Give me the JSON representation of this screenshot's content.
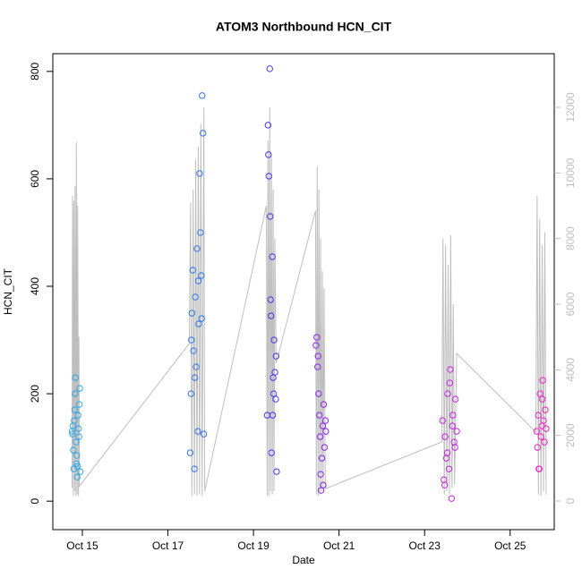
{
  "chart_data": {
    "type": "scatter",
    "title": "ATOM3 Northbound HCN_CIT",
    "xlabel": "Date",
    "ylabel": "HCN_CIT",
    "xlim": [
      14.31,
      26.03
    ],
    "xticks": [
      {
        "value": 15,
        "label": "Oct 15"
      },
      {
        "value": 17,
        "label": "Oct 17"
      },
      {
        "value": 19,
        "label": "Oct 19"
      },
      {
        "value": 21,
        "label": "Oct 21"
      },
      {
        "value": 23,
        "label": "Oct 23"
      },
      {
        "value": 25,
        "label": "Oct 25"
      }
    ],
    "ylim": [
      -53,
      833
    ],
    "yticks": [
      0,
      200,
      400,
      600,
      800
    ],
    "y2lim": [
      -873,
      13636
    ],
    "y2ticks": [
      0,
      2000,
      4000,
      6000,
      8000,
      10000,
      12000
    ],
    "series": [
      {
        "color": "#2aa6e6",
        "x": [
          14.76,
          14.77,
          14.78,
          14.79,
          14.8,
          14.81,
          14.82,
          14.83,
          14.84,
          14.85,
          14.86,
          14.87,
          14.88,
          14.89,
          14.9,
          14.91,
          14.92,
          14.93,
          14.94,
          14.95
        ],
        "values": [
          130,
          125,
          140,
          95,
          60,
          150,
          170,
          200,
          230,
          110,
          70,
          85,
          45,
          65,
          160,
          135,
          120,
          180,
          210,
          55
        ]
      },
      {
        "color": "#3476ea",
        "x": [
          17.52,
          17.54,
          17.56,
          17.58,
          17.6,
          17.62,
          17.64,
          17.66,
          17.68,
          17.7,
          17.72,
          17.74,
          17.76,
          17.78,
          17.8,
          17.82,
          17.84,
          17.55,
          17.63,
          17.71,
          17.79
        ],
        "values": [
          90,
          200,
          350,
          430,
          280,
          60,
          380,
          250,
          470,
          130,
          330,
          610,
          500,
          420,
          755,
          685,
          125,
          300,
          230,
          410,
          340
        ]
      },
      {
        "color": "#4a33ea",
        "x": [
          19.32,
          19.34,
          19.36,
          19.38,
          19.4,
          19.42,
          19.44,
          19.46,
          19.48,
          19.5,
          19.52,
          19.54,
          19.35,
          19.41,
          19.47,
          19.53,
          19.39,
          19.45
        ],
        "values": [
          160,
          700,
          605,
          805,
          375,
          90,
          455,
          230,
          300,
          240,
          190,
          55,
          645,
          345,
          200,
          270,
          530,
          160
        ]
      },
      {
        "color": "#8a22ea",
        "x": [
          20.46,
          20.48,
          20.5,
          20.52,
          20.54,
          20.56,
          20.58,
          20.6,
          20.62,
          20.64,
          20.66,
          20.68,
          20.51,
          20.57,
          20.63,
          20.69
        ],
        "values": [
          290,
          305,
          250,
          200,
          160,
          120,
          20,
          80,
          140,
          180,
          100,
          150,
          270,
          50,
          30,
          130
        ]
      },
      {
        "color": "#c823e2",
        "x": [
          23.42,
          23.45,
          23.48,
          23.51,
          23.54,
          23.57,
          23.6,
          23.63,
          23.66,
          23.69,
          23.72,
          23.75,
          23.47,
          23.53,
          23.59,
          23.65,
          23.71
        ],
        "values": [
          150,
          40,
          120,
          80,
          200,
          60,
          245,
          5,
          160,
          110,
          190,
          130,
          30,
          90,
          220,
          140,
          100
        ]
      },
      {
        "color": "#f020c6",
        "x": [
          25.62,
          25.64,
          25.66,
          25.68,
          25.7,
          25.72,
          25.74,
          25.76,
          25.78,
          25.8,
          25.82,
          25.84,
          25.67,
          25.75
        ],
        "values": [
          130,
          100,
          160,
          60,
          200,
          120,
          140,
          225,
          150,
          110,
          170,
          135,
          60,
          190
        ]
      },
      {
        "axis": "y2",
        "color": "#bebebe",
        "x": [
          14.76,
          14.77,
          14.79,
          14.8,
          14.82,
          14.83,
          14.85,
          14.86,
          14.88,
          14.89,
          14.91,
          14.92,
          14.93,
          17.5,
          17.53,
          17.56,
          17.59,
          17.62,
          17.65,
          17.68,
          17.71,
          17.74,
          17.77,
          17.8,
          17.84,
          17.86,
          19.3,
          19.32,
          19.34,
          19.36,
          19.38,
          19.4,
          19.42,
          19.44,
          19.46,
          19.48,
          19.5,
          19.53,
          20.45,
          20.47,
          20.49,
          20.51,
          20.53,
          20.55,
          20.57,
          20.59,
          20.61,
          20.63,
          20.65,
          20.68,
          23.4,
          23.43,
          23.46,
          23.49,
          23.52,
          23.55,
          23.58,
          23.61,
          23.64,
          23.67,
          23.7,
          23.75,
          25.6,
          25.63,
          25.66,
          25.69,
          25.72,
          25.75,
          25.78,
          25.81,
          25.84
        ],
        "values": [
          400,
          9300,
          150,
          9150,
          300,
          9600,
          150,
          10950,
          200,
          9000,
          150,
          5000,
          450,
          4800,
          9100,
          150,
          9500,
          200,
          10400,
          150,
          10800,
          200,
          11500,
          150,
          12000,
          300,
          9000,
          150,
          11000,
          150,
          12000,
          300,
          10500,
          200,
          9500,
          300,
          8000,
          4200,
          8850,
          200,
          10200,
          150,
          9500,
          200,
          8000,
          300,
          7000,
          400,
          6500,
          375,
          1800,
          8000,
          200,
          7800,
          300,
          7200,
          200,
          8100,
          400,
          6000,
          500,
          4500,
          2100,
          9300,
          200,
          8600,
          150,
          7800,
          300,
          8200,
          200
        ]
      }
    ]
  }
}
